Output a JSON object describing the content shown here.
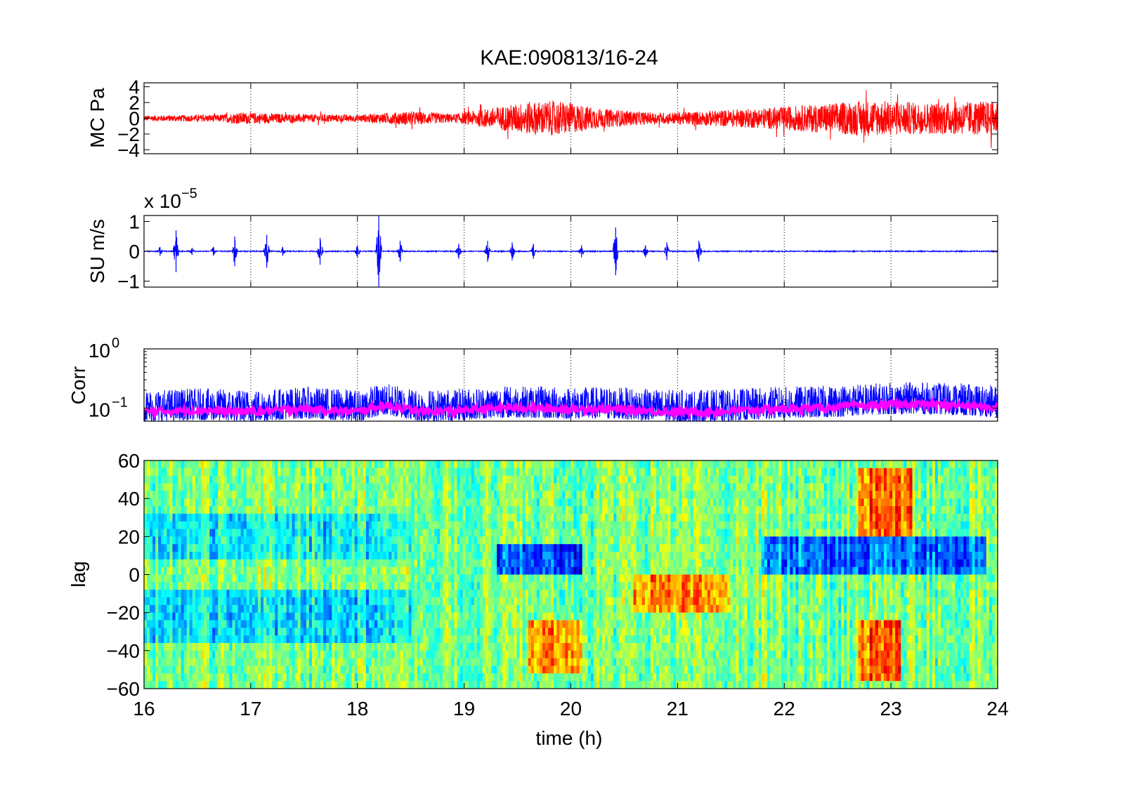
{
  "figure": {
    "title": "KAE:090813/16-24",
    "xlabel": "time (h)"
  },
  "chart_data": [
    {
      "type": "line",
      "panel": "mc-pressure",
      "ylabel": "MC Pa",
      "xlim": [
        16,
        24
      ],
      "ylim": [
        -4.5,
        4.5
      ],
      "yticks": [
        -4,
        -2,
        0,
        2,
        4
      ],
      "ytick_labels": [
        "−4",
        "−2",
        "0",
        "2",
        "4"
      ],
      "grid": "x-dotted",
      "color": "#ff0000",
      "envelope": [
        {
          "t": 16.0,
          "amp": 0.35
        },
        {
          "t": 16.7,
          "amp": 0.45
        },
        {
          "t": 16.9,
          "amp": 0.75
        },
        {
          "t": 17.4,
          "amp": 0.55
        },
        {
          "t": 18.0,
          "amp": 0.45
        },
        {
          "t": 18.5,
          "amp": 0.9
        },
        {
          "t": 18.9,
          "amp": 0.55
        },
        {
          "t": 19.2,
          "amp": 1.2
        },
        {
          "t": 19.6,
          "amp": 2.1
        },
        {
          "t": 19.9,
          "amp": 2.2
        },
        {
          "t": 20.3,
          "amp": 1.2
        },
        {
          "t": 20.8,
          "amp": 0.7
        },
        {
          "t": 21.2,
          "amp": 0.9
        },
        {
          "t": 21.8,
          "amp": 1.3
        },
        {
          "t": 22.3,
          "amp": 1.8
        },
        {
          "t": 22.8,
          "amp": 2.3
        },
        {
          "t": 23.3,
          "amp": 2.0
        },
        {
          "t": 24.0,
          "amp": 2.2
        }
      ]
    },
    {
      "type": "line",
      "panel": "su-velocity",
      "ylabel": "SU m/s",
      "exponent_label": "x 10",
      "exponent": "−5",
      "xlim": [
        16,
        24
      ],
      "ylim": [
        -1.2,
        1.2
      ],
      "yticks": [
        -1,
        0,
        1
      ],
      "ytick_labels": [
        "−1",
        "0",
        "1"
      ],
      "grid": "x-dotted",
      "color": "#0000ff",
      "bursts": [
        {
          "t": 16.15,
          "amp": 0.15
        },
        {
          "t": 16.3,
          "amp": 0.7
        },
        {
          "t": 16.45,
          "amp": 0.12
        },
        {
          "t": 16.65,
          "amp": 0.15
        },
        {
          "t": 16.85,
          "amp": 0.5
        },
        {
          "t": 17.15,
          "amp": 0.55
        },
        {
          "t": 17.3,
          "amp": 0.15
        },
        {
          "t": 17.65,
          "amp": 0.45
        },
        {
          "t": 18.0,
          "amp": 0.2
        },
        {
          "t": 18.2,
          "amp": 1.2
        },
        {
          "t": 18.4,
          "amp": 0.35
        },
        {
          "t": 18.95,
          "amp": 0.25
        },
        {
          "t": 19.22,
          "amp": 0.35
        },
        {
          "t": 19.45,
          "amp": 0.3
        },
        {
          "t": 19.65,
          "amp": 0.25
        },
        {
          "t": 20.1,
          "amp": 0.2
        },
        {
          "t": 20.42,
          "amp": 0.8
        },
        {
          "t": 20.7,
          "amp": 0.2
        },
        {
          "t": 20.9,
          "amp": 0.3
        },
        {
          "t": 21.2,
          "amp": 0.35
        },
        {
          "t": 21.2,
          "amp": 0.35
        },
        {
          "t": 21.2,
          "amp": 0.35
        },
        {
          "t": 21.2,
          "amp": 0.35
        },
        {
          "t": 21.2,
          "amp": 0.35
        },
        {
          "t": 21.2,
          "amp": 0.35
        },
        {
          "t": 21.2,
          "amp": 0.35
        },
        {
          "t": 21.2,
          "amp": 0.35
        },
        {
          "t": 21.2,
          "amp": 0.35
        },
        {
          "t": 21.2,
          "amp": 0.35
        },
        {
          "t": 21.2,
          "amp": 0.35
        },
        {
          "t": 21.2,
          "amp": 0.35
        },
        {
          "t": 21.2,
          "amp": 0.35
        },
        {
          "t": 21.2,
          "amp": 0.35
        },
        {
          "t": 21.2,
          "amp": 0.35
        },
        {
          "t": 21.2,
          "amp": 0.35
        },
        {
          "t": 21.2,
          "amp": 0.35
        },
        {
          "t": 21.2,
          "amp": 0.35
        },
        {
          "t": 21.2,
          "amp": 0.35
        },
        {
          "t": 21.2,
          "amp": 0.35
        },
        {
          "t": 21.2,
          "amp": 0.35
        },
        {
          "t": 21.2,
          "amp": 0.35
        },
        {
          "t": 21.2,
          "amp": 0.35
        },
        {
          "t": 21.2,
          "amp": 0.35
        },
        {
          "t": 21.2,
          "amp": 0.35
        },
        {
          "t": 21.2,
          "amp": 0.35
        },
        {
          "t": 21.2,
          "amp": 0.35
        },
        {
          "t": 21.2,
          "amp": 0.35
        },
        {
          "t": 21.2,
          "amp": 0.35
        },
        {
          "t": 21.2,
          "amp": 0.35
        },
        {
          "t": 21.2,
          "amp": 0.35
        },
        {
          "t": 21.2,
          "amp": 0.35
        }
      ]
    },
    {
      "type": "line",
      "panel": "correlation",
      "ylabel": "Corr",
      "yscale": "log",
      "xlim": [
        16,
        24
      ],
      "ylim": [
        0.06,
        1.0
      ],
      "ytick_labels": [
        {
          "value": 1.0,
          "base": "10",
          "exp": "0"
        },
        {
          "value": 0.1,
          "base": "10",
          "exp": "−1"
        }
      ],
      "grid": "x-dotted",
      "series": [
        {
          "color": "#0000ff",
          "role": "raw"
        },
        {
          "color": "#ff00ff",
          "role": "smoothed"
        }
      ],
      "levels": [
        {
          "t": 16.0,
          "v": 0.085
        },
        {
          "t": 16.5,
          "v": 0.09
        },
        {
          "t": 17.0,
          "v": 0.085
        },
        {
          "t": 17.5,
          "v": 0.095
        },
        {
          "t": 18.0,
          "v": 0.085
        },
        {
          "t": 18.25,
          "v": 0.11
        },
        {
          "t": 18.6,
          "v": 0.085
        },
        {
          "t": 19.0,
          "v": 0.09
        },
        {
          "t": 19.4,
          "v": 0.1
        },
        {
          "t": 19.9,
          "v": 0.095
        },
        {
          "t": 20.4,
          "v": 0.095
        },
        {
          "t": 20.9,
          "v": 0.085
        },
        {
          "t": 21.4,
          "v": 0.085
        },
        {
          "t": 21.9,
          "v": 0.095
        },
        {
          "t": 22.4,
          "v": 0.1
        },
        {
          "t": 22.8,
          "v": 0.11
        },
        {
          "t": 23.2,
          "v": 0.115
        },
        {
          "t": 23.6,
          "v": 0.11
        },
        {
          "t": 24.0,
          "v": 0.1
        }
      ]
    },
    {
      "type": "heatmap",
      "panel": "lag-correlation",
      "ylabel": "lag",
      "xlim": [
        16,
        24
      ],
      "ylim": [
        -60,
        60
      ],
      "yticks": [
        -60,
        -40,
        -20,
        0,
        20,
        40,
        60
      ],
      "ytick_labels": [
        "−60",
        "−40",
        "−20",
        "0",
        "20",
        "40",
        "60"
      ],
      "xticks": [
        16,
        17,
        18,
        19,
        20,
        21,
        22,
        23,
        24
      ],
      "xtick_labels": [
        "16",
        "17",
        "18",
        "19",
        "20",
        "21",
        "22",
        "23",
        "24"
      ],
      "colormap": "jet",
      "features": [
        {
          "t0": 19.3,
          "t1": 20.1,
          "lag0": -2,
          "lag1": 15,
          "value": -0.6
        },
        {
          "t0": 20.6,
          "t1": 21.5,
          "lag0": -18,
          "lag1": -2,
          "value": 0.45
        },
        {
          "t0": 21.8,
          "t1": 23.9,
          "lag0": -2,
          "lag1": 18,
          "value": -0.5
        },
        {
          "t0": 19.6,
          "t1": 20.1,
          "lag0": -50,
          "lag1": -25,
          "value": 0.5
        },
        {
          "t0": 22.7,
          "t1": 23.2,
          "lag0": 20,
          "lag1": 55,
          "value": 0.55
        },
        {
          "t0": 22.7,
          "t1": 23.1,
          "lag0": -55,
          "lag1": -25,
          "value": 0.55
        },
        {
          "t0": 16.0,
          "t1": 18.5,
          "lag0": -35,
          "lag1": -10,
          "value": -0.3
        },
        {
          "t0": 16.0,
          "t1": 18.5,
          "lag0": 10,
          "lag1": 30,
          "value": -0.25
        }
      ]
    }
  ]
}
